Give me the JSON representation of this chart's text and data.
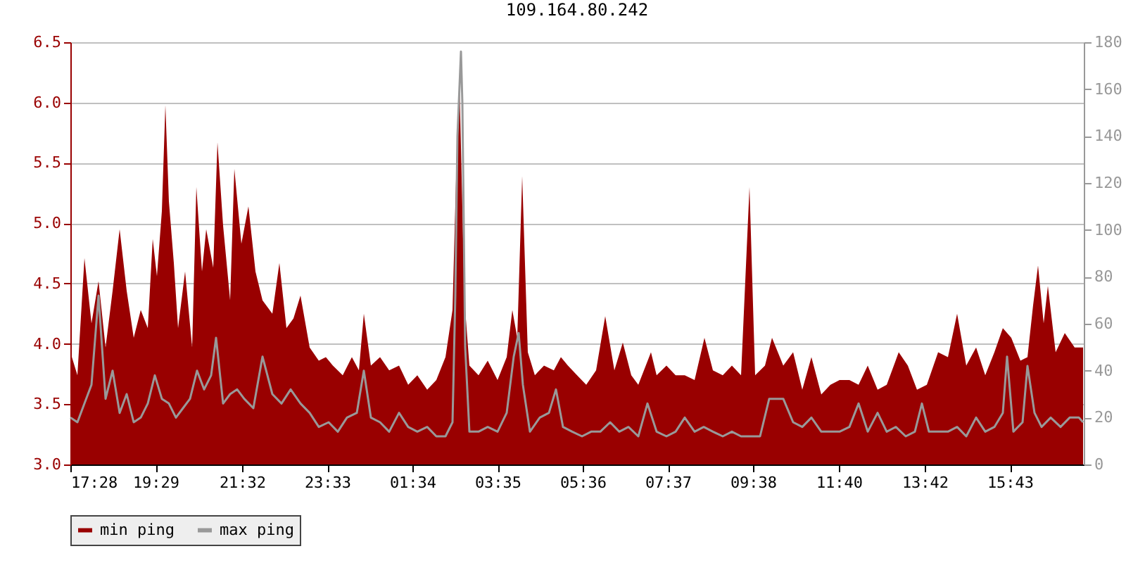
{
  "chart_data": {
    "type": "area",
    "title": "109.164.80.242",
    "xlim": [
      "--01-01T17:28",
      "--01-02T17:28"
    ],
    "xticks": [
      {
        "value": "--01-01T17:28",
        "label": "17:28"
      },
      {
        "value": "--01-01T19:29",
        "label": "19:29"
      },
      {
        "value": "--01-01T21:32",
        "label": "21:32"
      },
      {
        "value": "--01-01T23:33",
        "label": "23:33"
      },
      {
        "value": "--01-02T01:34",
        "label": "01:34"
      },
      {
        "value": "--01-02T03:35",
        "label": "03:35"
      },
      {
        "value": "--01-02T05:36",
        "label": "05:36"
      },
      {
        "value": "--01-02T07:37",
        "label": "07:37"
      },
      {
        "value": "--01-02T09:38",
        "label": "09:38"
      },
      {
        "value": "--01-02T11:40",
        "label": "11:40"
      },
      {
        "value": "--01-02T13:42",
        "label": "13:42"
      },
      {
        "value": "--01-02T15:43",
        "label": "15:43"
      }
    ],
    "ylim": [
      3,
      6.5
    ],
    "yticks": [
      {
        "value": 3,
        "label": "3.0"
      },
      3.5,
      {
        "value": 4,
        "label": "4.0"
      },
      4.5,
      {
        "value": 5,
        "label": "5.0"
      },
      5.5,
      {
        "value": 6,
        "label": "6.0"
      },
      6.5
    ],
    "y2lim": [
      0,
      180
    ],
    "y2ticks": [
      0,
      20,
      40,
      60,
      80,
      100,
      120,
      140,
      160,
      180
    ],
    "grid": "y",
    "legend": "bottom",
    "series": [
      {
        "name": "min ping",
        "type": "area",
        "color": "#990000",
        "x": [
          "--01-01T17:28",
          "--01-01T17:38",
          "--01-01T17:48",
          "--01-01T17:58",
          "--01-01T18:08",
          "--01-01T18:18",
          "--01-01T18:28",
          "--01-01T18:38",
          "--01-01T18:48",
          "--01-01T18:58",
          "--01-01T19:08",
          "--01-01T19:18",
          "--01-01T19:25",
          "--01-01T19:31",
          "--01-01T19:38",
          "--01-01T19:43",
          "--01-01T19:48",
          "--01-01T19:55",
          "--01-01T20:01",
          "--01-01T20:11",
          "--01-01T20:21",
          "--01-01T20:27",
          "--01-01T20:35",
          "--01-01T20:41",
          "--01-01T20:51",
          "--01-01T20:57",
          "--01-01T21:05",
          "--01-01T21:15",
          "--01-01T21:21",
          "--01-01T21:31",
          "--01-01T21:41",
          "--01-01T21:51",
          "--01-01T22:01",
          "--01-01T22:15",
          "--01-01T22:25",
          "--01-01T22:35",
          "--01-01T22:45",
          "--01-01T22:55",
          "--01-01T23:08",
          "--01-01T23:21",
          "--01-01T23:31",
          "--01-01T23:41",
          "--01-01T23:55",
          "--01-02T00:08",
          "--01-02T00:18",
          "--01-02T00:25",
          "--01-02T00:35",
          "--01-02T00:48",
          "--01-02T01:01",
          "--01-02T01:15",
          "--01-02T01:28",
          "--01-02T01:41",
          "--01-02T01:55",
          "--01-02T02:08",
          "--01-02T02:21",
          "--01-02T02:31",
          "--01-02T02:38",
          "--01-02T02:41",
          "--01-02T02:48",
          "--01-02T02:55",
          "--01-02T03:08",
          "--01-02T03:21",
          "--01-02T03:35",
          "--01-02T03:48",
          "--01-02T03:56",
          "--01-02T04:03",
          "--01-02T04:10",
          "--01-02T04:18",
          "--01-02T04:28",
          "--01-02T04:41",
          "--01-02T04:55",
          "--01-02T05:05",
          "--01-02T05:15",
          "--01-02T05:28",
          "--01-02T05:41",
          "--01-02T05:55",
          "--01-02T06:08",
          "--01-02T06:21",
          "--01-02T06:33",
          "--01-02T06:45",
          "--01-02T06:55",
          "--01-02T07:13",
          "--01-02T07:21",
          "--01-02T07:35",
          "--01-02T07:48",
          "--01-02T08:01",
          "--01-02T08:15",
          "--01-02T08:29",
          "--01-02T08:41",
          "--01-02T08:55",
          "--01-02T09:08",
          "--01-02T09:21",
          "--01-02T09:33",
          "--01-02T09:41",
          "--01-02T09:55",
          "--01-02T10:05",
          "--01-02T10:21",
          "--01-02T10:35",
          "--01-02T10:48",
          "--01-02T11:01",
          "--01-02T11:15",
          "--01-02T11:28",
          "--01-02T11:41",
          "--01-02T11:55",
          "--01-02T12:08",
          "--01-02T12:21",
          "--01-02T12:35",
          "--01-02T12:48",
          "--01-02T13:05",
          "--01-02T13:18",
          "--01-02T13:31",
          "--01-02T13:45",
          "--01-02T14:01",
          "--01-02T14:15",
          "--01-02T14:28",
          "--01-02T14:41",
          "--01-02T14:55",
          "--01-02T15:08",
          "--01-02T15:21",
          "--01-02T15:33",
          "--01-02T15:45",
          "--01-02T15:58",
          "--01-02T16:08",
          "--01-02T16:16",
          "--01-02T16:23",
          "--01-02T16:31",
          "--01-02T16:37",
          "--01-02T16:48",
          "--01-02T17:01",
          "--01-02T17:15",
          "--01-02T17:27"
        ],
        "values": [
          3.93,
          3.74,
          4.71,
          4.17,
          4.52,
          3.97,
          4.44,
          4.95,
          4.44,
          4.05,
          4.28,
          4.13,
          4.87,
          4.56,
          5.1,
          5.98,
          5.18,
          4.67,
          4.13,
          4.6,
          3.97,
          5.3,
          4.6,
          4.95,
          4.63,
          5.67,
          4.98,
          4.36,
          5.45,
          4.83,
          5.14,
          4.6,
          4.36,
          4.25,
          4.67,
          4.13,
          4.21,
          4.4,
          3.97,
          3.86,
          3.89,
          3.82,
          3.74,
          3.89,
          3.78,
          4.25,
          3.82,
          3.89,
          3.78,
          3.82,
          3.66,
          3.74,
          3.62,
          3.7,
          3.89,
          4.28,
          5.8,
          6.14,
          4.36,
          3.82,
          3.74,
          3.86,
          3.7,
          3.89,
          4.28,
          4.05,
          5.39,
          3.93,
          3.74,
          3.82,
          3.78,
          3.89,
          3.82,
          3.74,
          3.66,
          3.78,
          4.23,
          3.78,
          4.01,
          3.74,
          3.66,
          3.93,
          3.74,
          3.82,
          3.74,
          3.74,
          3.7,
          4.05,
          3.78,
          3.74,
          3.82,
          3.74,
          5.3,
          3.74,
          3.82,
          4.05,
          3.82,
          3.93,
          3.62,
          3.89,
          3.58,
          3.66,
          3.7,
          3.7,
          3.66,
          3.82,
          3.62,
          3.66,
          3.93,
          3.82,
          3.62,
          3.66,
          3.93,
          3.89,
          4.25,
          3.82,
          3.97,
          3.74,
          3.93,
          4.13,
          4.05,
          3.86,
          3.89,
          4.32,
          4.65,
          4.17,
          4.48,
          3.93,
          4.09,
          3.97,
          3.97
        ]
      },
      {
        "name": "max ping",
        "type": "line",
        "axis": "y2",
        "color": "#999999",
        "x": [
          "--01-01T17:28",
          "--01-01T17:38",
          "--01-01T17:48",
          "--01-01T17:58",
          "--01-01T18:08",
          "--01-01T18:18",
          "--01-01T18:28",
          "--01-01T18:38",
          "--01-01T18:48",
          "--01-01T18:58",
          "--01-01T19:08",
          "--01-01T19:18",
          "--01-01T19:28",
          "--01-01T19:38",
          "--01-01T19:48",
          "--01-01T19:58",
          "--01-01T20:08",
          "--01-01T20:18",
          "--01-01T20:28",
          "--01-01T20:38",
          "--01-01T20:48",
          "--01-01T20:55",
          "--01-01T21:05",
          "--01-01T21:15",
          "--01-01T21:25",
          "--01-01T21:35",
          "--01-01T21:48",
          "--01-01T22:01",
          "--01-01T22:15",
          "--01-01T22:28",
          "--01-01T22:41",
          "--01-01T22:55",
          "--01-01T23:08",
          "--01-01T23:21",
          "--01-01T23:35",
          "--01-01T23:48",
          "--01-02T00:01",
          "--01-02T00:15",
          "--01-02T00:25",
          "--01-02T00:35",
          "--01-02T00:48",
          "--01-02T01:01",
          "--01-02T01:15",
          "--01-02T01:28",
          "--01-02T01:41",
          "--01-02T01:55",
          "--01-02T02:08",
          "--01-02T02:21",
          "--01-02T02:31",
          "--01-02T02:35",
          "--01-02T02:38",
          "--01-02T02:43",
          "--01-02T02:45",
          "--01-02T02:49",
          "--01-02T02:55",
          "--01-02T03:08",
          "--01-02T03:21",
          "--01-02T03:35",
          "--01-02T03:48",
          "--01-02T03:58",
          "--01-02T04:05",
          "--01-02T04:11",
          "--01-02T04:21",
          "--01-02T04:35",
          "--01-02T04:48",
          "--01-02T04:58",
          "--01-02T05:08",
          "--01-02T05:21",
          "--01-02T05:35",
          "--01-02T05:48",
          "--01-02T06:01",
          "--01-02T06:15",
          "--01-02T06:28",
          "--01-02T06:41",
          "--01-02T06:55",
          "--01-02T07:08",
          "--01-02T07:21",
          "--01-02T07:35",
          "--01-02T07:48",
          "--01-02T08:01",
          "--01-02T08:15",
          "--01-02T08:28",
          "--01-02T08:41",
          "--01-02T08:55",
          "--01-02T09:08",
          "--01-02T09:21",
          "--01-02T09:35",
          "--01-02T09:48",
          "--01-02T10:01",
          "--01-02T10:21",
          "--01-02T10:35",
          "--01-02T10:48",
          "--01-02T11:01",
          "--01-02T11:15",
          "--01-02T11:28",
          "--01-02T11:41",
          "--01-02T11:55",
          "--01-02T12:08",
          "--01-02T12:21",
          "--01-02T12:35",
          "--01-02T12:48",
          "--01-02T13:01",
          "--01-02T13:15",
          "--01-02T13:28",
          "--01-02T13:38",
          "--01-02T13:48",
          "--01-02T14:01",
          "--01-02T14:15",
          "--01-02T14:28",
          "--01-02T14:41",
          "--01-02T14:55",
          "--01-02T15:08",
          "--01-02T15:21",
          "--01-02T15:33",
          "--01-02T15:39",
          "--01-02T15:48",
          "--01-02T16:01",
          "--01-02T16:08",
          "--01-02T16:18",
          "--01-02T16:28",
          "--01-02T16:41",
          "--01-02T16:55",
          "--01-02T17:08",
          "--01-02T17:21",
          "--01-02T17:27"
        ],
        "values": [
          20,
          18,
          26,
          34,
          72,
          28,
          40,
          22,
          30,
          18,
          20,
          26,
          38,
          28,
          26,
          20,
          24,
          28,
          40,
          32,
          38,
          54,
          26,
          30,
          32,
          28,
          24,
          46,
          30,
          26,
          32,
          26,
          22,
          16,
          18,
          14,
          20,
          22,
          40,
          20,
          18,
          14,
          22,
          16,
          14,
          16,
          12,
          12,
          18,
          72,
          140,
          176,
          154,
          50,
          14,
          14,
          16,
          14,
          22,
          46,
          56,
          34,
          14,
          20,
          22,
          32,
          16,
          14,
          12,
          14,
          14,
          18,
          14,
          16,
          12,
          26,
          14,
          12,
          14,
          20,
          14,
          16,
          14,
          12,
          14,
          12,
          12,
          12,
          28,
          28,
          18,
          16,
          20,
          14,
          14,
          14,
          16,
          26,
          14,
          22,
          14,
          16,
          12,
          14,
          26,
          14,
          14,
          14,
          16,
          12,
          20,
          14,
          16,
          22,
          46,
          14,
          18,
          42,
          22,
          16,
          20,
          16,
          20,
          20,
          18
        ]
      }
    ]
  }
}
